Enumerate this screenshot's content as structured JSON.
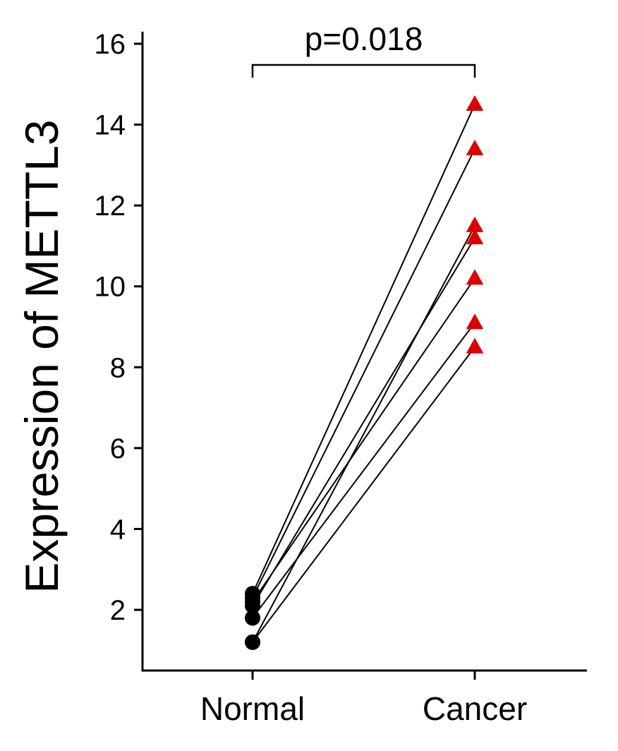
{
  "chart_data": {
    "type": "scatter",
    "subtype": "paired-dot-plot",
    "categories": [
      "Normal",
      "Cancer"
    ],
    "ylabel": "Expression of METTL3",
    "xlabel": "",
    "ylim": [
      0.8,
      16.3
    ],
    "yticks": [
      2,
      4,
      6,
      8,
      10,
      12,
      14,
      16
    ],
    "grid": false,
    "legend": "none",
    "annotation": {
      "text": "p=0.018",
      "from_category": "Normal",
      "to_category": "Cancer"
    },
    "series": [
      {
        "name": "Normal",
        "marker": "circle",
        "color": "#000000",
        "values": [
          2.4,
          2.3,
          2.1,
          2.2,
          1.8,
          1.2,
          1.2
        ]
      },
      {
        "name": "Cancer",
        "marker": "triangle",
        "color": "#dd0000",
        "values": [
          14.5,
          13.4,
          11.5,
          11.2,
          10.2,
          9.1,
          8.5
        ]
      }
    ],
    "pairs": [
      [
        2.4,
        14.5
      ],
      [
        2.3,
        13.4
      ],
      [
        1.2,
        11.5
      ],
      [
        2.1,
        11.2
      ],
      [
        2.2,
        10.2
      ],
      [
        1.8,
        9.1
      ],
      [
        1.2,
        8.5
      ]
    ]
  },
  "colors": {
    "axis": "#000000",
    "line": "#000000",
    "normal_marker": "#000000",
    "cancer_marker": "#dd0000"
  }
}
